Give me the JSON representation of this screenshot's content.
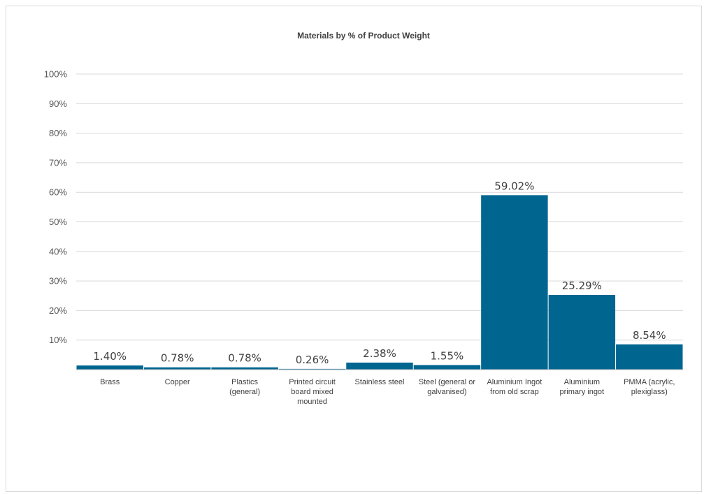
{
  "chart_data": {
    "type": "bar",
    "title": "Materials by % of Product Weight",
    "xlabel": "",
    "ylabel": "",
    "ylim": [
      0,
      100
    ],
    "y_ticks": [
      "10%",
      "20%",
      "30%",
      "40%",
      "50%",
      "60%",
      "70%",
      "80%",
      "90%",
      "100%"
    ],
    "y_tick_values": [
      10,
      20,
      30,
      40,
      50,
      60,
      70,
      80,
      90,
      100
    ],
    "grid": true,
    "legend": "none",
    "bar_color": "#006690",
    "categories": [
      "Brass",
      "Copper",
      "Plastics (general)",
      "Printed circuit board mixed mounted",
      "Stainless steel",
      "Steel (general or galvanised)",
      "Aluminium Ingot from old scrap",
      "Aluminium primary ingot",
      "PMMA (acrylic, plexiglass)"
    ],
    "category_label_lines": [
      [
        "Brass"
      ],
      [
        "Copper"
      ],
      [
        "Plastics",
        "(general)"
      ],
      [
        "Printed circuit",
        "board mixed",
        "mounted"
      ],
      [
        "Stainless steel"
      ],
      [
        "Steel (general or",
        "galvanised)"
      ],
      [
        "Aluminium Ingot",
        "from old scrap"
      ],
      [
        "Aluminium",
        "primary ingot"
      ],
      [
        "PMMA (acrylic,",
        "plexiglass)"
      ]
    ],
    "values": [
      1.4,
      0.78,
      0.78,
      0.26,
      2.38,
      1.55,
      59.02,
      25.29,
      8.54
    ],
    "data_labels": [
      "1.40%",
      "0.78%",
      "0.78%",
      "0.26%",
      "2.38%",
      "1.55%",
      "59.02%",
      "25.29%",
      "8.54%"
    ]
  }
}
